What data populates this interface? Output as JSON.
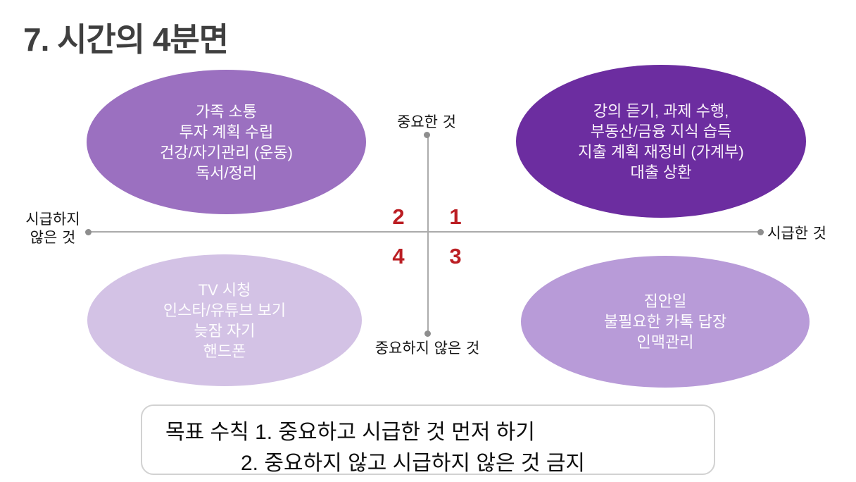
{
  "title": "7. 시간의 4분면",
  "axes": {
    "top_label": "중요한 것",
    "bottom_label": "중요하지 않은 것",
    "left_label_line1": "시급하지",
    "left_label_line2": "않은 것",
    "right_label": "시급한 것"
  },
  "quadrant_numbers": {
    "q1": "1",
    "q2": "2",
    "q3": "3",
    "q4": "4"
  },
  "ellipses": {
    "top_left": {
      "quadrant": "important-not-urgent",
      "fill": "#9b70c0",
      "lines": [
        "가족 소통",
        "투자 계획 수립",
        "건강/자기관리 (운동)",
        "독서/정리"
      ]
    },
    "top_right": {
      "quadrant": "important-urgent",
      "fill": "#6c2da0",
      "lines": [
        "강의 듣기, 과제 수행,",
        "부동산/금융 지식 습득",
        "지출 계획 재정비 (가계부)",
        "대출 상환"
      ]
    },
    "bottom_left": {
      "quadrant": "not-important-not-urgent",
      "fill": "#d3c2e5",
      "lines": [
        "TV 시청",
        "인스타/유튜브 보기",
        "늦잠 자기",
        "핸드폰"
      ]
    },
    "bottom_right": {
      "quadrant": "not-important-urgent",
      "fill": "#b89bd8",
      "lines": [
        "집안일",
        "불필요한 카톡 답장",
        "인맥관리"
      ]
    }
  },
  "note_box": {
    "line1": "목표 수칙 1. 중요하고 시급한 것 먼저 하기",
    "line2": "2. 중요하지 않고 시급하지 않은 것 금지"
  },
  "colors": {
    "quadrant_number_red": "#bb1e23",
    "axis_gray": "#ababab",
    "title_gray": "#3f3f3f",
    "ellipse_top_left": "#9b70c0",
    "ellipse_top_right": "#6c2da0",
    "ellipse_bottom_left": "#d3c2e5",
    "ellipse_bottom_right": "#b89bd8"
  }
}
